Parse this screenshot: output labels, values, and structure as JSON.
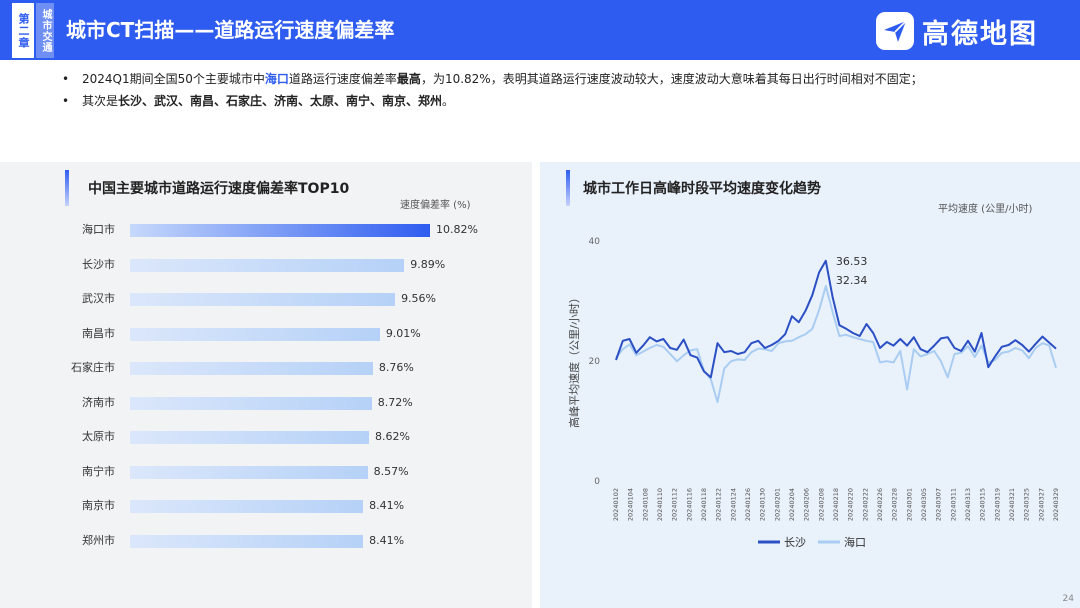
{
  "header": {
    "chapter_label": "第二章",
    "section_label": "城市交通",
    "title": "城市CT扫描——道路运行速度偏差率",
    "logo_text": "高德地图"
  },
  "bullets": {
    "line1": {
      "pre": "2024Q1期间全国50个主要城市中",
      "highlight": "海口",
      "mid": "道路运行速度偏差率",
      "bold": "最高",
      "post": "，为10.82%，表明其道路运行速度波动较大，速度波动大意味着其每日出行时间相对不固定；"
    },
    "line2": {
      "pre": "其次是",
      "bold": "长沙、武汉、南昌、石家庄、济南、太原、南宁、南京、郑州",
      "post": "。"
    }
  },
  "left_panel": {
    "title": "中国主要城市道路运行速度偏差率TOP10",
    "unit": "速度偏差率 (%)"
  },
  "right_panel": {
    "title": "城市工作日高峰时段平均速度变化趋势",
    "unit": "平均速度 (公里/小时)"
  },
  "page_number": "24",
  "colors": {
    "brand": "#2f5cf0",
    "changsha": "#2b4fc4",
    "haikou": "#a9cdf2"
  },
  "chart_data": [
    {
      "type": "bar",
      "title": "中国主要城市道路运行速度偏差率TOP10",
      "ylabel": "速度偏差率 (%)",
      "categories": [
        "海口市",
        "长沙市",
        "武汉市",
        "南昌市",
        "石家庄市",
        "济南市",
        "太原市",
        "南宁市",
        "南京市",
        "郑州市"
      ],
      "values": [
        10.82,
        9.89,
        9.56,
        9.01,
        8.76,
        8.72,
        8.62,
        8.57,
        8.41,
        8.41
      ],
      "labels": [
        "10.82%",
        "9.89%",
        "9.56%",
        "9.01%",
        "8.76%",
        "8.72%",
        "8.62%",
        "8.57%",
        "8.41%",
        "8.41%"
      ]
    },
    {
      "type": "line",
      "title": "城市工作日高峰时段平均速度变化趋势",
      "ylabel": "高峰平均速度（公里/小时）",
      "unit_label": "平均速度 (公里/小时)",
      "ylim": [
        0,
        40
      ],
      "yticks": [
        "0",
        "20",
        "40"
      ],
      "x_ticks": [
        "20240102",
        "20240104",
        "20240108",
        "20240110",
        "20240112",
        "20240116",
        "20240118",
        "20240122",
        "20240124",
        "20240126",
        "20240130",
        "20240201",
        "20240204",
        "20240206",
        "20240208",
        "20240218",
        "20240220",
        "20240222",
        "20240226",
        "20240228",
        "20240301",
        "20240305",
        "20240307",
        "20240311",
        "20240313",
        "20240315",
        "20240319",
        "20240321",
        "20240325",
        "20240327",
        "20240329"
      ],
      "annotations": [
        {
          "text": "36.53"
        },
        {
          "text": "32.34"
        }
      ],
      "series": [
        {
          "name": "长沙",
          "values": [
            20.0,
            23.2,
            23.5,
            21.2,
            22.4,
            23.8,
            23.1,
            23.5,
            22.0,
            21.7,
            23.4,
            20.8,
            20.4,
            18.1,
            17.1,
            22.8,
            21.3,
            21.5,
            21.0,
            21.3,
            22.8,
            23.2,
            22.0,
            22.5,
            23.2,
            24.3,
            27.3,
            26.3,
            28.2,
            30.8,
            34.6,
            36.53,
            30.5,
            25.8,
            25.2,
            24.5,
            24.0,
            26.0,
            24.5,
            22.0,
            23.0,
            22.4,
            23.5,
            22.4,
            23.8,
            21.8,
            21.3,
            22.4,
            23.6,
            23.8,
            22.0,
            21.5,
            23.2,
            21.4,
            24.5,
            18.8,
            20.6,
            22.2,
            22.5,
            23.3,
            22.5,
            21.4,
            22.7,
            23.9,
            22.9,
            21.9
          ]
        },
        {
          "name": "海口",
          "values": [
            20.4,
            21.8,
            22.6,
            20.8,
            21.4,
            22.0,
            22.5,
            22.2,
            21.0,
            19.8,
            20.8,
            21.6,
            21.8,
            18.2,
            16.8,
            13.0,
            18.6,
            19.8,
            20.1,
            20.0,
            21.3,
            21.9,
            21.8,
            21.5,
            22.8,
            23.1,
            23.2,
            23.8,
            24.3,
            25.2,
            28.3,
            32.34,
            28.0,
            24.0,
            24.2,
            23.8,
            23.5,
            23.2,
            23.0,
            19.6,
            19.8,
            19.6,
            21.5,
            15.1,
            21.8,
            20.6,
            21.0,
            21.5,
            19.8,
            17.1,
            21.0,
            21.2,
            22.3,
            20.5,
            22.4,
            19.6,
            20.0,
            21.2,
            21.4,
            22.0,
            21.6,
            20.3,
            22.0,
            22.8,
            22.4,
            18.7
          ]
        }
      ]
    }
  ]
}
